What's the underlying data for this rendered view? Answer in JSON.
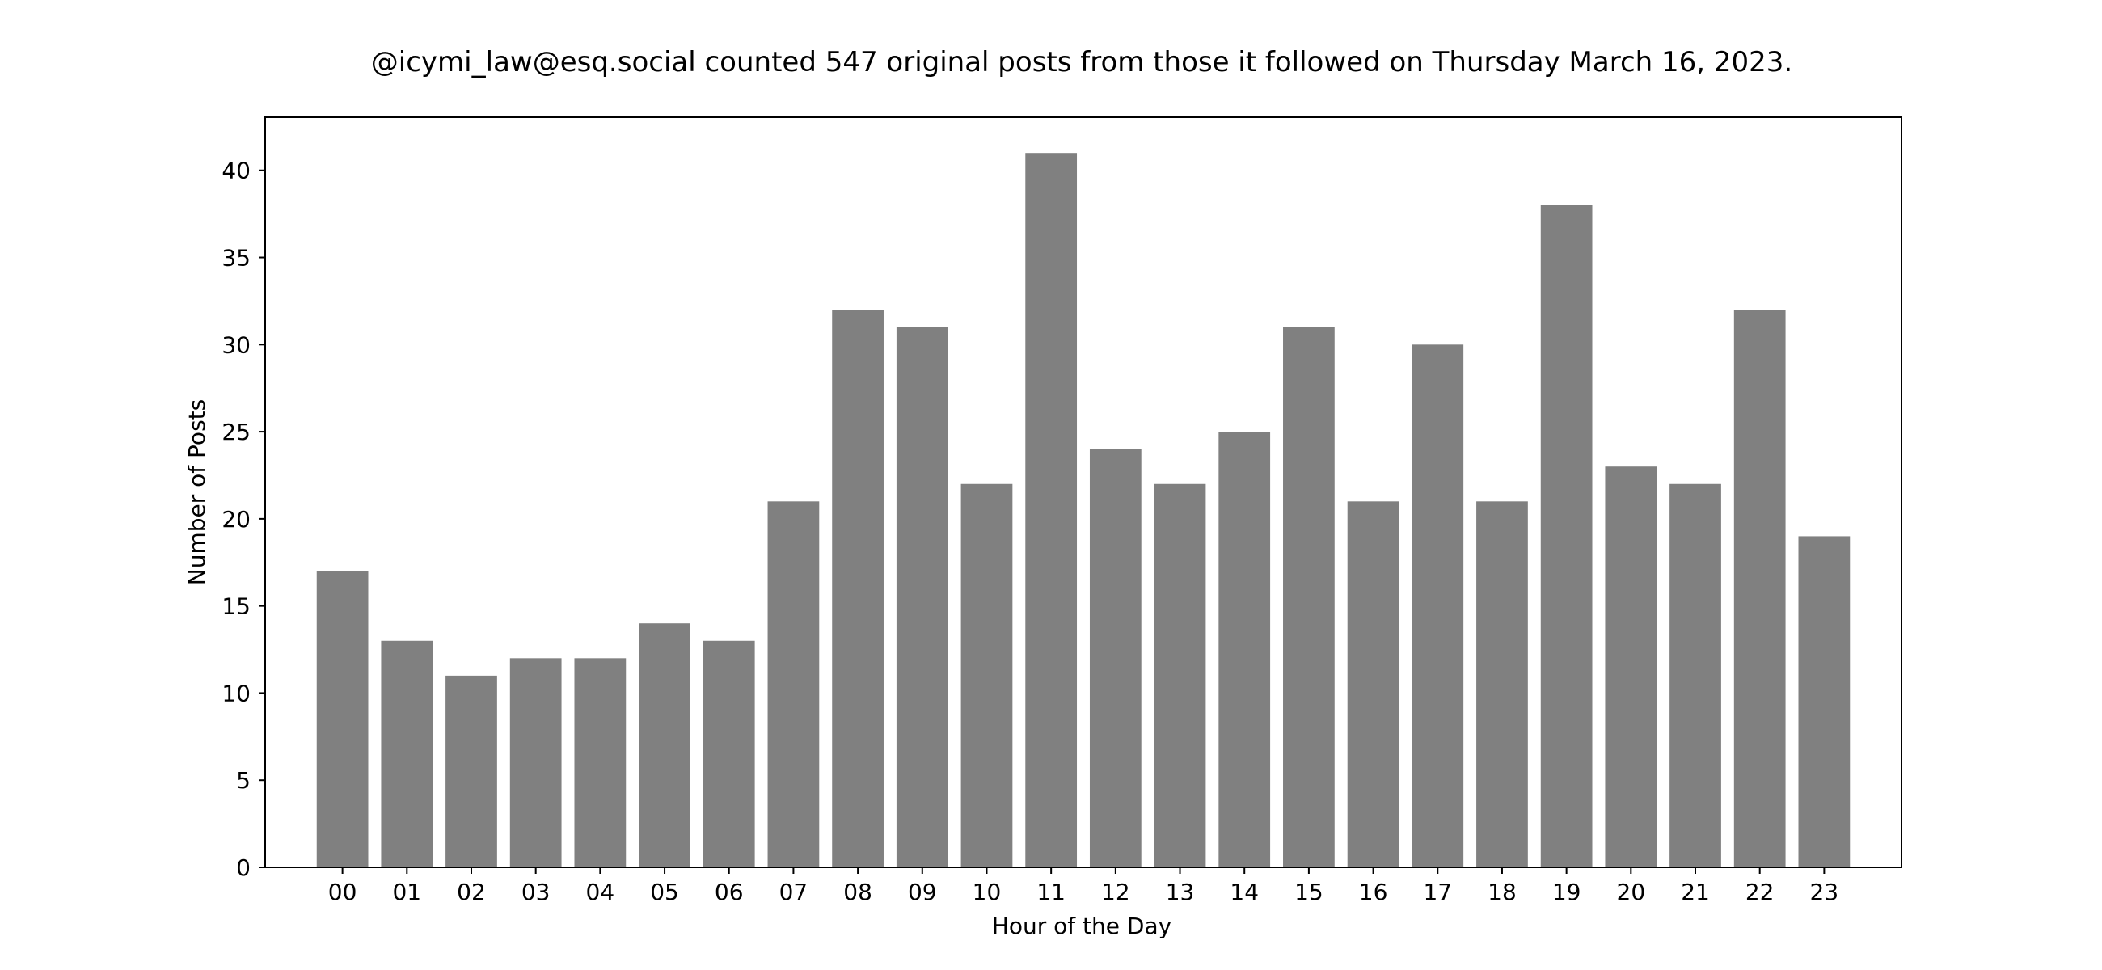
{
  "chart_data": {
    "type": "bar",
    "title": "@icymi_law@esq.social counted 547 original posts from those it followed on Thursday March 16, 2023.",
    "xlabel": "Hour of the Day",
    "ylabel": "Number of Posts",
    "categories": [
      "00",
      "01",
      "02",
      "03",
      "04",
      "05",
      "06",
      "07",
      "08",
      "09",
      "10",
      "11",
      "12",
      "13",
      "14",
      "15",
      "16",
      "17",
      "18",
      "19",
      "20",
      "21",
      "22",
      "23"
    ],
    "values": [
      17,
      13,
      11,
      12,
      12,
      14,
      13,
      21,
      32,
      31,
      22,
      41,
      24,
      22,
      25,
      31,
      21,
      30,
      21,
      38,
      23,
      22,
      32,
      19
    ],
    "ylim": [
      0,
      43.05
    ],
    "yticks": [
      0,
      5,
      10,
      15,
      20,
      25,
      30,
      35,
      40
    ],
    "bar_color": "#808080",
    "grid": false,
    "legend": "none"
  }
}
